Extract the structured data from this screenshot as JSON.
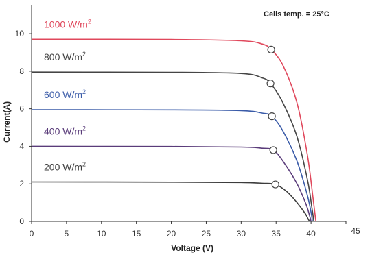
{
  "chart_data": {
    "type": "line",
    "xlabel": "Voltage  (V)",
    "ylabel": "Current(A)",
    "xlim": [
      0,
      45
    ],
    "ylim": [
      0,
      11.5
    ],
    "x_ticks": [
      0,
      5,
      10,
      15,
      20,
      25,
      30,
      35,
      40,
      45
    ],
    "y_ticks": [
      0,
      2,
      4,
      6,
      8,
      10
    ],
    "grid": false,
    "annotation": "Cells temp. = 25°C",
    "series": [
      {
        "name": "1000 W/m2",
        "label_main": "1000 W/m",
        "label_sup": "2",
        "color": "#e0485c",
        "isc": 9.7,
        "voc": 40.7,
        "mpp": [
          34.3,
          9.15
        ],
        "points": [
          [
            0,
            9.7
          ],
          [
            20,
            9.69
          ],
          [
            30,
            9.62
          ],
          [
            33,
            9.45
          ],
          [
            34.3,
            9.15
          ],
          [
            36,
            8.3
          ],
          [
            38,
            6.3
          ],
          [
            39.5,
            3.5
          ],
          [
            40.3,
            1.2
          ],
          [
            40.7,
            0
          ]
        ]
      },
      {
        "name": "800 W/m2",
        "label_main": "800 W/m",
        "label_sup": "2",
        "color": "#454545",
        "isc": 7.95,
        "voc": 40.4,
        "mpp": [
          34.2,
          7.35
        ],
        "points": [
          [
            0,
            7.95
          ],
          [
            20,
            7.94
          ],
          [
            30,
            7.88
          ],
          [
            33,
            7.65
          ],
          [
            34.2,
            7.35
          ],
          [
            36,
            6.3
          ],
          [
            38,
            4.5
          ],
          [
            39.5,
            2.2
          ],
          [
            40.1,
            0.8
          ],
          [
            40.4,
            0
          ]
        ]
      },
      {
        "name": "600 W/m2",
        "label_main": "600 W/m",
        "label_sup": "2",
        "color": "#3a5ba8",
        "isc": 5.95,
        "voc": 40.2,
        "mpp": [
          34.4,
          5.6
        ],
        "points": [
          [
            0,
            5.95
          ],
          [
            20,
            5.94
          ],
          [
            30,
            5.9
          ],
          [
            33,
            5.77
          ],
          [
            34.4,
            5.6
          ],
          [
            36,
            4.8
          ],
          [
            38,
            3.2
          ],
          [
            39.4,
            1.5
          ],
          [
            40.0,
            0.5
          ],
          [
            40.2,
            0
          ]
        ]
      },
      {
        "name": "400 W/m2",
        "label_main": "400 W/m",
        "label_sup": "2",
        "color": "#5a3c7a",
        "isc": 4.0,
        "voc": 40.0,
        "mpp": [
          34.6,
          3.8
        ],
        "points": [
          [
            0,
            4.0
          ],
          [
            20,
            3.99
          ],
          [
            30,
            3.96
          ],
          [
            33,
            3.9
          ],
          [
            34.6,
            3.8
          ],
          [
            36,
            3.2
          ],
          [
            38,
            2.0
          ],
          [
            39.3,
            0.9
          ],
          [
            39.8,
            0.3
          ],
          [
            40.0,
            0
          ]
        ]
      },
      {
        "name": "200 W/m2",
        "label_main": "200 W/m",
        "label_sup": "2",
        "color": "#3c3c3c",
        "isc": 2.1,
        "voc": 39.8,
        "mpp": [
          34.9,
          1.97
        ],
        "points": [
          [
            0,
            2.1
          ],
          [
            20,
            2.09
          ],
          [
            30,
            2.07
          ],
          [
            33,
            2.03
          ],
          [
            34.9,
            1.97
          ],
          [
            36.5,
            1.6
          ],
          [
            38,
            1.0
          ],
          [
            39.2,
            0.4
          ],
          [
            39.6,
            0.12
          ],
          [
            39.8,
            0
          ]
        ]
      }
    ]
  }
}
